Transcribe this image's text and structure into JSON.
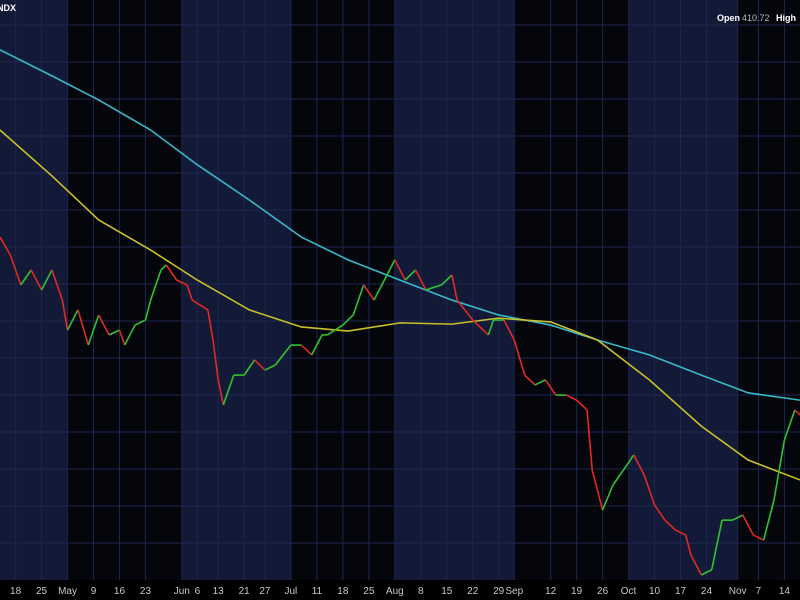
{
  "header": {
    "symbol": "NDX",
    "open_label": "Open",
    "open_value": 410.72,
    "high_label": "High"
  },
  "chart_data": {
    "type": "line",
    "xlim": [
      0,
      154
    ],
    "ylim": [
      290,
      470
    ],
    "xticks": [
      {
        "value": 3,
        "label": "18"
      },
      {
        "value": 8,
        "label": "25"
      },
      {
        "value": 13,
        "label": "May"
      },
      {
        "value": 18,
        "label": "9"
      },
      {
        "value": 23,
        "label": "16"
      },
      {
        "value": 28,
        "label": "23"
      },
      {
        "value": 35,
        "label": "Jun"
      },
      {
        "value": 38,
        "label": "6"
      },
      {
        "value": 42,
        "label": "13"
      },
      {
        "value": 47,
        "label": "21"
      },
      {
        "value": 51,
        "label": "27"
      },
      {
        "value": 56,
        "label": "Jul"
      },
      {
        "value": 61,
        "label": "11"
      },
      {
        "value": 66,
        "label": "18"
      },
      {
        "value": 71,
        "label": "25"
      },
      {
        "value": 76,
        "label": "Aug"
      },
      {
        "value": 81,
        "label": "8"
      },
      {
        "value": 86,
        "label": "15"
      },
      {
        "value": 91,
        "label": "22"
      },
      {
        "value": 96,
        "label": "29"
      },
      {
        "value": 99,
        "label": "Sep"
      },
      {
        "value": 106,
        "label": "12"
      },
      {
        "value": 111,
        "label": "19"
      },
      {
        "value": 116,
        "label": "26"
      },
      {
        "value": 121,
        "label": "Oct"
      },
      {
        "value": 126,
        "label": "10"
      },
      {
        "value": 131,
        "label": "17"
      },
      {
        "value": 136,
        "label": "24"
      },
      {
        "value": 142,
        "label": "Nov"
      },
      {
        "value": 146,
        "label": "7"
      },
      {
        "value": 151,
        "label": "14"
      }
    ],
    "shading": {
      "color": "#131a38",
      "spans": [
        [
          0,
          13
        ],
        [
          35,
          56
        ],
        [
          76,
          99
        ],
        [
          121,
          142
        ]
      ]
    },
    "price": {
      "up_color": "#2fc42f",
      "down_color": "#e12a22",
      "x": [
        0,
        2,
        4,
        6,
        8,
        10,
        12,
        13,
        15,
        17,
        19,
        21,
        23,
        24,
        26,
        28,
        29,
        31,
        32,
        34,
        36,
        37,
        40,
        41,
        42,
        43,
        45,
        47,
        49,
        51,
        53,
        56,
        58,
        60,
        62,
        63,
        66,
        68,
        70,
        72,
        75,
        76,
        78,
        80,
        82,
        85,
        87,
        88,
        91,
        94,
        95,
        97,
        99,
        101,
        103,
        105,
        107,
        109,
        111,
        113,
        114,
        116,
        118,
        120,
        122,
        124,
        126,
        128,
        130,
        132,
        133,
        135,
        137,
        138,
        139,
        141,
        143,
        145,
        147,
        149,
        151,
        153,
        154
      ],
      "values": [
        398.3,
        392.6,
        383.2,
        387.9,
        381.6,
        387.9,
        378.4,
        368.9,
        375.3,
        364.2,
        373.7,
        367.4,
        368.9,
        364.2,
        370.5,
        372.1,
        378.4,
        387.9,
        389.5,
        384.7,
        383.2,
        378.4,
        375.3,
        365.8,
        353.2,
        345.3,
        354.7,
        354.7,
        359.5,
        356.3,
        357.9,
        364.2,
        364.2,
        361.1,
        367.4,
        367.4,
        370.5,
        373.7,
        383.2,
        378.4,
        387.9,
        391.1,
        384.7,
        387.9,
        381.6,
        383.2,
        386.3,
        378.4,
        372.1,
        367.4,
        372.1,
        372.1,
        365.8,
        354.7,
        351.6,
        353.2,
        348.4,
        348.4,
        346.8,
        343.7,
        324.7,
        312.1,
        320,
        324.7,
        329.5,
        323.2,
        313.7,
        308.9,
        305.8,
        304.2,
        297.9,
        291.6,
        293.2,
        301.1,
        308.9,
        308.9,
        310.5,
        304.2,
        302.6,
        315.3,
        334.2,
        343.7,
        342.1
      ]
    },
    "series": [
      {
        "color": "#39b8c8",
        "x": [
          0,
          10,
          19,
          29,
          38,
          48,
          58,
          67,
          77,
          87,
          96,
          106,
          115,
          125,
          135,
          144,
          154
        ],
        "values": [
          457.4,
          449.2,
          441.6,
          432.1,
          421.1,
          410,
          398.3,
          391.1,
          384.7,
          378.4,
          373.7,
          370.5,
          365.8,
          361.1,
          354.7,
          349.1,
          346.8
        ]
      },
      {
        "color": "#c8c02a",
        "x": [
          0,
          10,
          19,
          29,
          38,
          48,
          58,
          67,
          77,
          87,
          96,
          106,
          115,
          125,
          135,
          144,
          154
        ],
        "values": [
          432.1,
          417.6,
          403.7,
          394.2,
          384.7,
          375.3,
          369.9,
          368.6,
          371.2,
          370.8,
          372.7,
          371.5,
          365.8,
          353.2,
          338.6,
          327.9,
          321.6
        ]
      }
    ]
  }
}
